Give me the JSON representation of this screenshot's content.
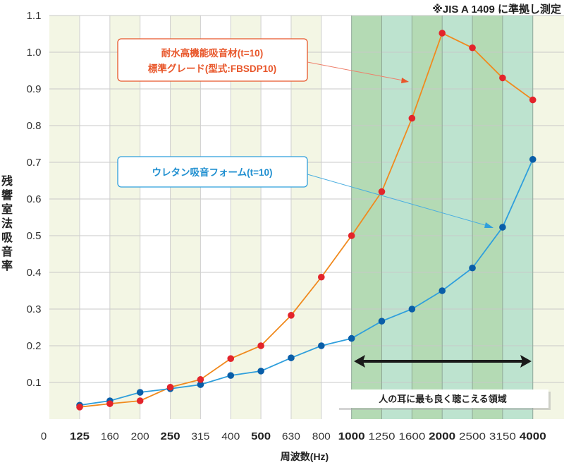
{
  "chart_data": {
    "type": "line",
    "note": "※JIS A 1409 に準拠し測定",
    "xlabel": "周波数(Hz)",
    "ylabel": "残響室法吸音率",
    "categories": [
      "125",
      "160",
      "200",
      "250",
      "315",
      "400",
      "500",
      "630",
      "800",
      "1000",
      "1250",
      "1600",
      "2000",
      "2500",
      "3150",
      "4000"
    ],
    "bold_categories": [
      "125",
      "250",
      "500",
      "1000",
      "2000",
      "4000"
    ],
    "x_zero_label": "0",
    "ylim": [
      0,
      1.1
    ],
    "yticks": [
      "0.1",
      "0.2",
      "0.3",
      "0.4",
      "0.5",
      "0.6",
      "0.7",
      "0.8",
      "0.9",
      "1.0",
      "1.1"
    ],
    "grid": true,
    "series": [
      {
        "name": "耐水高機能吸音材(t=10) 標準グレード(型式:FBSDP10)",
        "label_lines": [
          "耐水高機能吸音材(t=10)",
          "標準グレード(型式:FBSDP10)"
        ],
        "color": "#f08a1e",
        "marker_color": "#e3242b",
        "values": [
          0.033,
          0.042,
          0.05,
          0.087,
          0.108,
          0.165,
          0.2,
          0.283,
          0.387,
          0.5,
          0.62,
          0.82,
          1.052,
          1.012,
          0.93,
          0.87
        ]
      },
      {
        "name": "ウレタン吸音フォーム(t=10)",
        "label_lines": [
          "ウレタン吸音フォーム(t=10)"
        ],
        "color": "#2f9fdc",
        "marker_color": "#0a5ea8",
        "values": [
          0.038,
          0.05,
          0.073,
          0.083,
          0.094,
          0.119,
          0.131,
          0.167,
          0.2,
          0.22,
          0.267,
          0.3,
          0.35,
          0.412,
          0.523,
          0.708
        ]
      }
    ],
    "highlight_region": {
      "from": "1000",
      "to": "4000",
      "label": "人の耳に最も良く聴こえる領域"
    },
    "colors": {
      "band": "#f3f6e4",
      "region_dark": "#b4dab4",
      "region_light": "#bde3cf",
      "orange_box": "#e8562a",
      "blue_box": "#2f9fdc"
    }
  }
}
